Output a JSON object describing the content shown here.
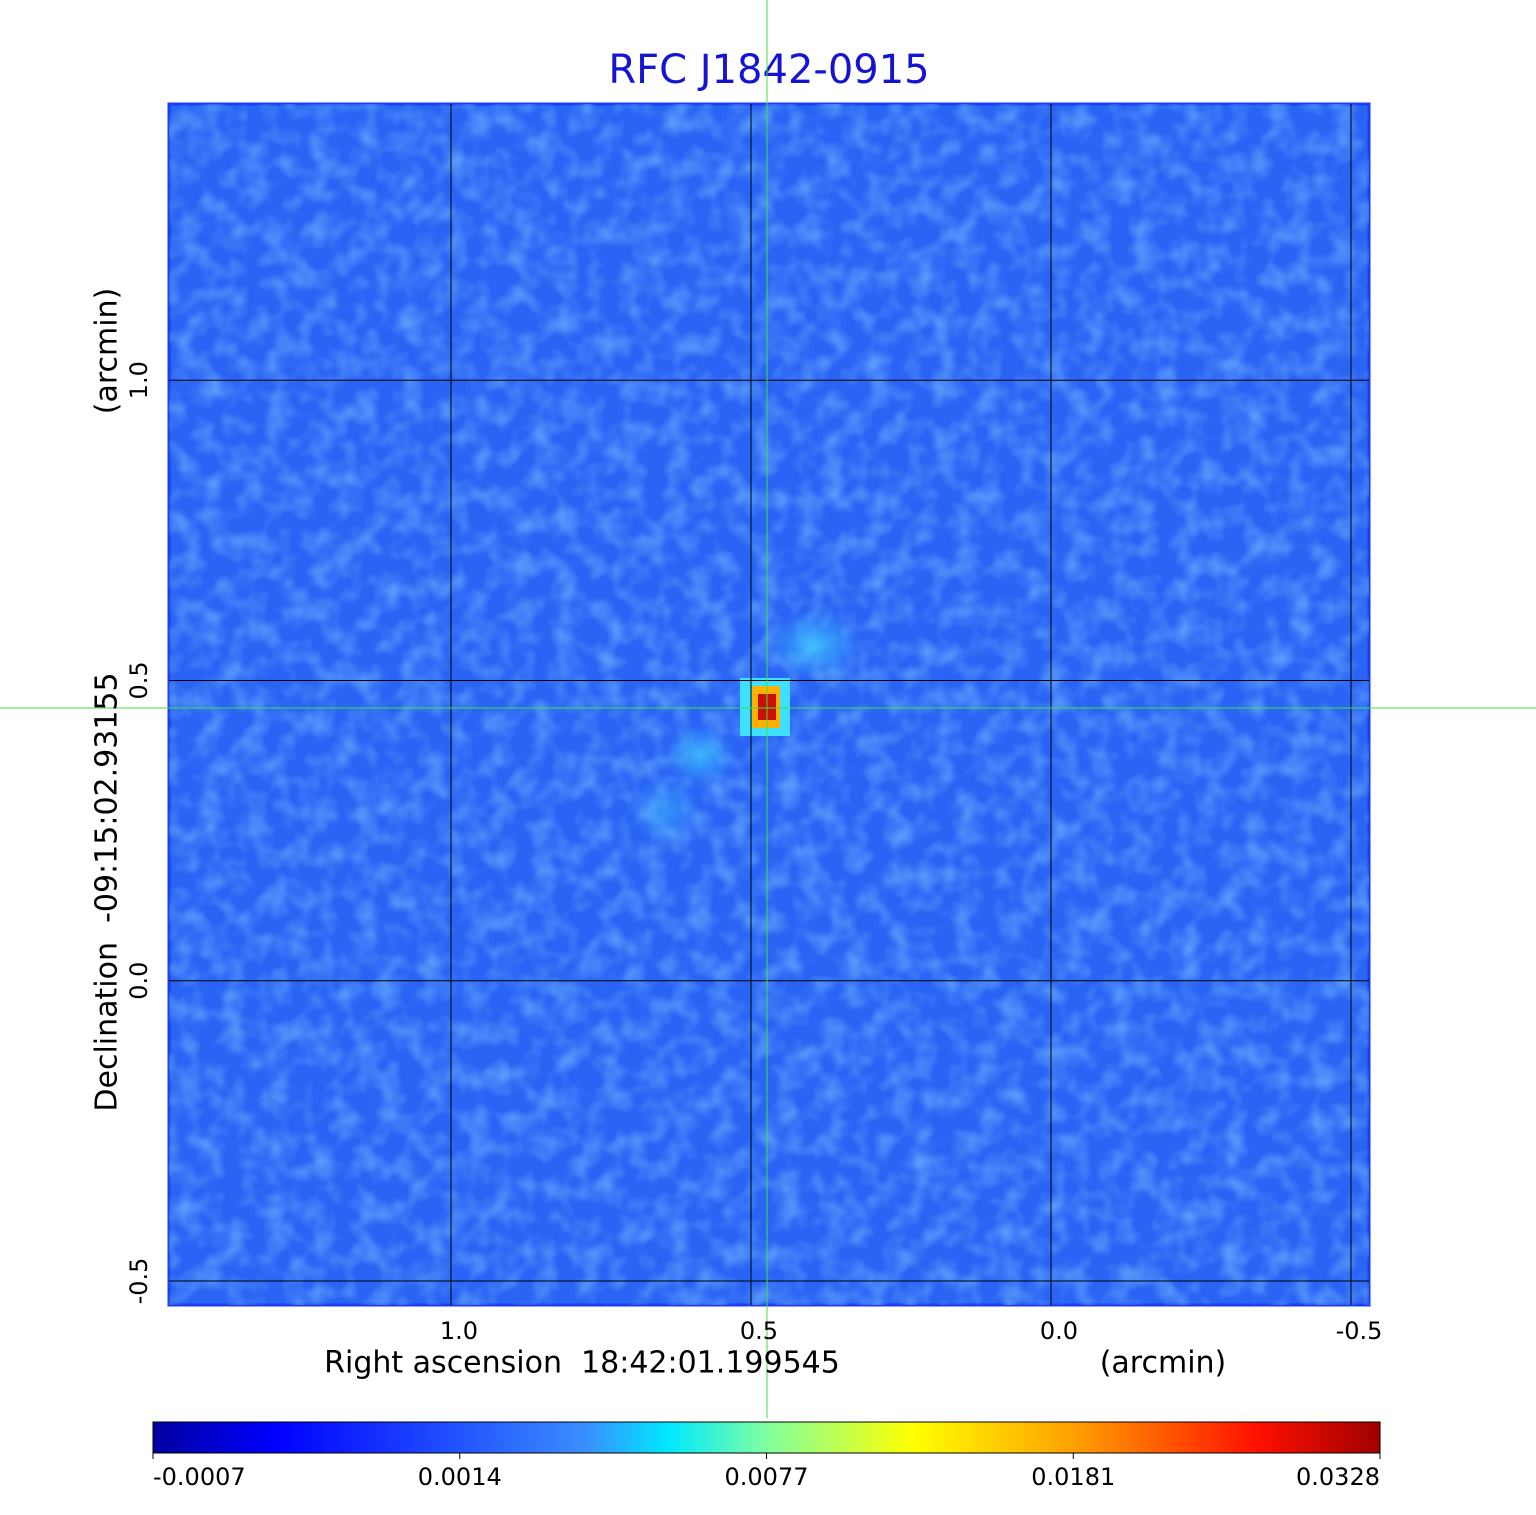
{
  "chart_data": {
    "type": "image",
    "title": "RFC J1842-0915",
    "xlabel": "Right ascension  18:42:01.199545",
    "xunit": "(arcmin)",
    "ylabel": "Declination  -09:15:02.93155",
    "yunit": "(arcmin)",
    "xlim": [
      1.47,
      -0.53
    ],
    "ylim": [
      -0.54,
      1.46
    ],
    "xticks": [
      {
        "value": 1,
        "label": "1.0"
      },
      0.5,
      {
        "value": 0,
        "label": "0.0"
      },
      -0.5
    ],
    "yticks": [
      -0.5,
      {
        "value": 0,
        "label": "0.0"
      },
      0.5,
      {
        "value": 1,
        "label": "1.0"
      }
    ],
    "grid": true,
    "colorbar_ticks": [
      -0.0007,
      0.0014,
      0.0077,
      0.0181,
      0.0328
    ]
  }
}
